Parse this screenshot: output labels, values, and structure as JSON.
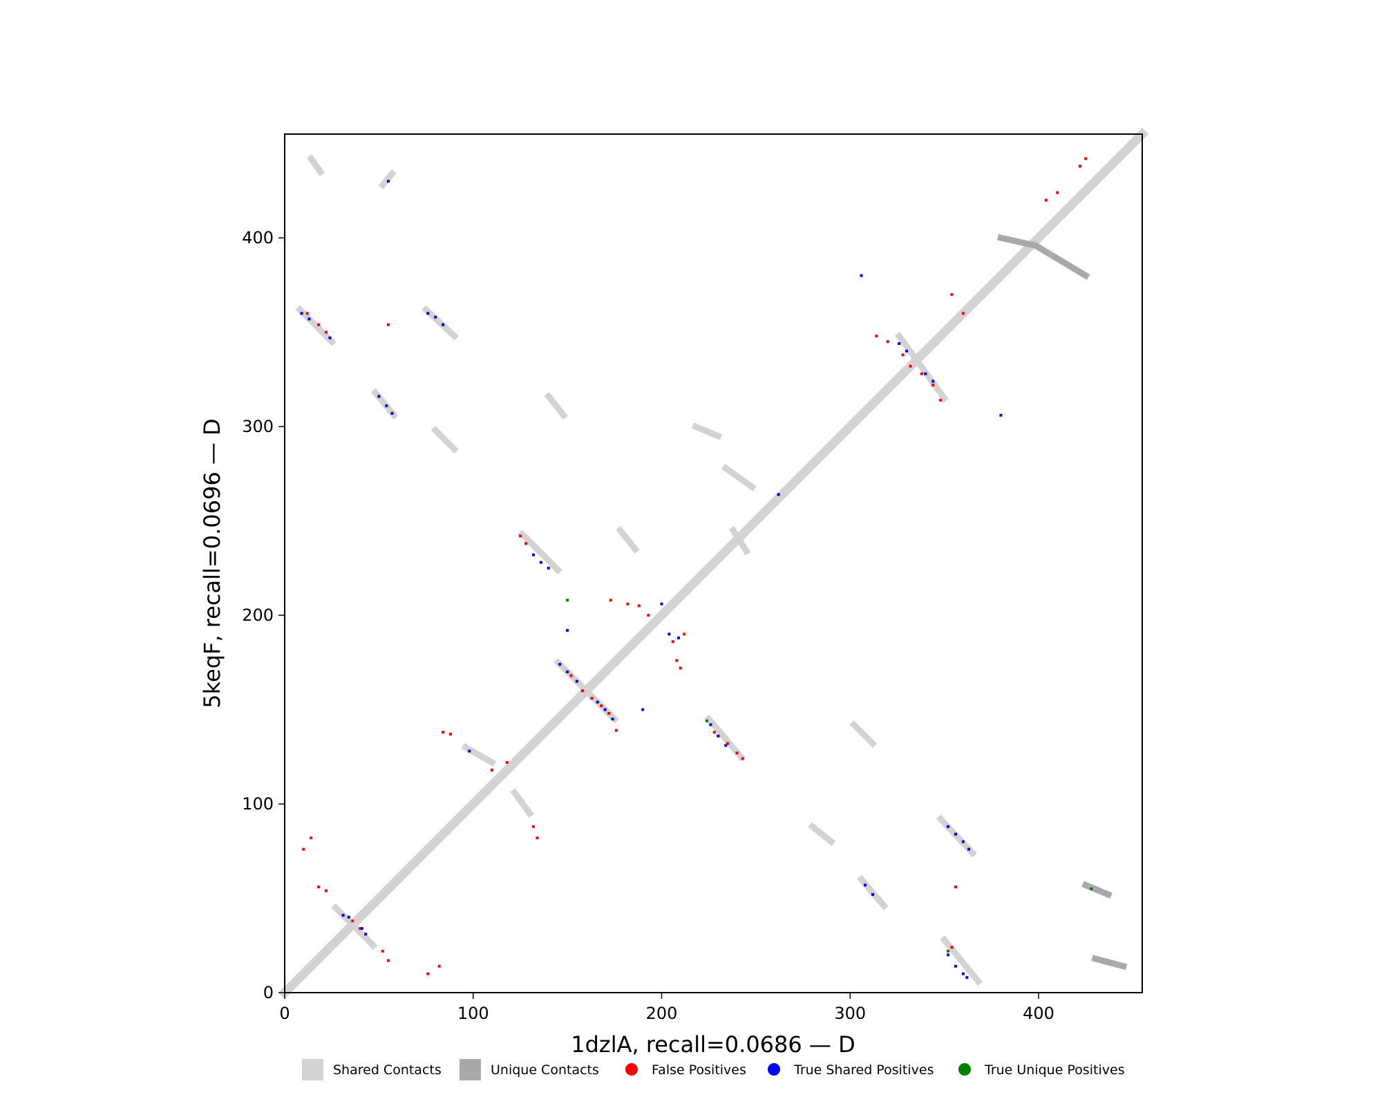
{
  "chart_data": {
    "type": "scatter",
    "title": "",
    "xlabel": "1dzlA, recall=0.0686 — D",
    "ylabel": "5keqF, recall=0.0696 — D",
    "xlim": [
      0,
      455
    ],
    "ylim": [
      0,
      455
    ],
    "x_ticks": [
      "0",
      "100",
      "200",
      "300",
      "400"
    ],
    "y_ticks": [
      "0",
      "100",
      "200",
      "300",
      "400"
    ],
    "grid": false,
    "legend_position": "bottom",
    "colors": {
      "shared_contacts": "#d3d3d3",
      "unique_contacts": "#a9a9a9",
      "false_positives": "#ff0000",
      "true_shared_positives": "#0000ff",
      "true_unique_positives": "#008000"
    },
    "legend": [
      {
        "label": "Shared Contacts",
        "marker": "square",
        "color": "#d3d3d3"
      },
      {
        "label": "Unique Contacts",
        "marker": "square",
        "color": "#a9a9a9"
      },
      {
        "label": "False Positives",
        "marker": "circle",
        "color": "#ff0000"
      },
      {
        "label": "True Shared Positives",
        "marker": "circle",
        "color": "#0000ff"
      },
      {
        "label": "True Unique Positives",
        "marker": "circle",
        "color": "#008000"
      }
    ],
    "diagonal_band": {
      "from": 0,
      "to": 455,
      "color": "#d3d3d3"
    },
    "contact_segments": [
      {
        "series": "shared",
        "x": [
          8,
          25
        ],
        "y": [
          362,
          345
        ]
      },
      {
        "series": "shared",
        "x": [
          75,
          90
        ],
        "y": [
          362,
          348
        ]
      },
      {
        "series": "shared",
        "x": [
          48,
          58
        ],
        "y": [
          318,
          306
        ]
      },
      {
        "series": "shared",
        "x": [
          140,
          148
        ],
        "y": [
          316,
          306
        ]
      },
      {
        "series": "shared",
        "x": [
          126,
          145
        ],
        "y": [
          243,
          224
        ]
      },
      {
        "series": "shared",
        "x": [
          145,
          175
        ],
        "y": [
          175,
          145
        ]
      },
      {
        "series": "shared",
        "x": [
          225,
          242
        ],
        "y": [
          145,
          125
        ]
      },
      {
        "series": "shared",
        "x": [
          326,
          350
        ],
        "y": [
          348,
          315
        ]
      },
      {
        "series": "shared",
        "x": [
          348,
          365
        ],
        "y": [
          92,
          74
        ]
      },
      {
        "series": "shared",
        "x": [
          350,
          368
        ],
        "y": [
          28,
          6
        ]
      },
      {
        "series": "shared",
        "x": [
          306,
          318
        ],
        "y": [
          60,
          46
        ]
      },
      {
        "series": "shared",
        "x": [
          27,
          47
        ],
        "y": [
          45,
          25
        ]
      },
      {
        "series": "shared",
        "x": [
          234,
          248
        ],
        "y": [
          278,
          268
        ]
      },
      {
        "series": "shared",
        "x": [
          178,
          186
        ],
        "y": [
          245,
          235
        ]
      },
      {
        "series": "shared",
        "x": [
          96,
          110
        ],
        "y": [
          130,
          122
        ]
      },
      {
        "series": "shared",
        "x": [
          122,
          130
        ],
        "y": [
          106,
          95
        ]
      },
      {
        "series": "shared",
        "x": [
          302,
          312
        ],
        "y": [
          142,
          132
        ]
      },
      {
        "series": "shared",
        "x": [
          280,
          290
        ],
        "y": [
          88,
          80
        ]
      },
      {
        "series": "shared",
        "x": [
          238,
          245
        ],
        "y": [
          245,
          234
        ]
      },
      {
        "series": "shared",
        "x": [
          80,
          90
        ],
        "y": [
          298,
          288
        ]
      },
      {
        "series": "shared",
        "x": [
          218,
          230
        ],
        "y": [
          300,
          295
        ]
      },
      {
        "series": "shared",
        "x": [
          52,
          57
        ],
        "y": [
          428,
          434
        ]
      },
      {
        "series": "shared",
        "x": [
          14,
          19
        ],
        "y": [
          442,
          435
        ]
      },
      {
        "series": "unique",
        "x": [
          400,
          425
        ],
        "y": [
          395,
          380
        ]
      },
      {
        "series": "unique",
        "x": [
          380,
          398
        ],
        "y": [
          400,
          396
        ]
      },
      {
        "series": "unique",
        "x": [
          425,
          437
        ],
        "y": [
          57,
          52
        ]
      },
      {
        "series": "unique",
        "x": [
          430,
          445
        ],
        "y": [
          18,
          14
        ]
      }
    ],
    "false_positive_points": [
      {
        "x": 12,
        "y": 360
      },
      {
        "x": 18,
        "y": 354
      },
      {
        "x": 22,
        "y": 350
      },
      {
        "x": 55,
        "y": 354
      },
      {
        "x": 125,
        "y": 242
      },
      {
        "x": 128,
        "y": 238
      },
      {
        "x": 152,
        "y": 168
      },
      {
        "x": 158,
        "y": 160
      },
      {
        "x": 163,
        "y": 156
      },
      {
        "x": 168,
        "y": 152
      },
      {
        "x": 172,
        "y": 148
      },
      {
        "x": 176,
        "y": 139
      },
      {
        "x": 173,
        "y": 208
      },
      {
        "x": 182,
        "y": 206
      },
      {
        "x": 188,
        "y": 205
      },
      {
        "x": 193,
        "y": 200
      },
      {
        "x": 206,
        "y": 186
      },
      {
        "x": 208,
        "y": 176
      },
      {
        "x": 210,
        "y": 172
      },
      {
        "x": 212,
        "y": 190
      },
      {
        "x": 235,
        "y": 132
      },
      {
        "x": 240,
        "y": 127
      },
      {
        "x": 243,
        "y": 124
      },
      {
        "x": 228,
        "y": 138
      },
      {
        "x": 328,
        "y": 338
      },
      {
        "x": 332,
        "y": 332
      },
      {
        "x": 338,
        "y": 328
      },
      {
        "x": 344,
        "y": 322
      },
      {
        "x": 348,
        "y": 314
      },
      {
        "x": 314,
        "y": 348
      },
      {
        "x": 320,
        "y": 345
      },
      {
        "x": 354,
        "y": 370
      },
      {
        "x": 360,
        "y": 360
      },
      {
        "x": 84,
        "y": 138
      },
      {
        "x": 88,
        "y": 137
      },
      {
        "x": 110,
        "y": 118
      },
      {
        "x": 118,
        "y": 122
      },
      {
        "x": 132,
        "y": 88
      },
      {
        "x": 134,
        "y": 82
      },
      {
        "x": 10,
        "y": 76
      },
      {
        "x": 14,
        "y": 82
      },
      {
        "x": 18,
        "y": 56
      },
      {
        "x": 22,
        "y": 54
      },
      {
        "x": 52,
        "y": 22
      },
      {
        "x": 55,
        "y": 17
      },
      {
        "x": 76,
        "y": 10
      },
      {
        "x": 82,
        "y": 14
      },
      {
        "x": 354,
        "y": 24
      },
      {
        "x": 356,
        "y": 56
      },
      {
        "x": 404,
        "y": 420
      },
      {
        "x": 410,
        "y": 424
      },
      {
        "x": 422,
        "y": 438
      },
      {
        "x": 425,
        "y": 442
      },
      {
        "x": 36,
        "y": 38
      },
      {
        "x": 40,
        "y": 34
      }
    ],
    "true_shared_positive_points": [
      {
        "x": 9,
        "y": 360
      },
      {
        "x": 13,
        "y": 357
      },
      {
        "x": 24,
        "y": 347
      },
      {
        "x": 76,
        "y": 360
      },
      {
        "x": 80,
        "y": 358
      },
      {
        "x": 84,
        "y": 354
      },
      {
        "x": 50,
        "y": 316
      },
      {
        "x": 54,
        "y": 311
      },
      {
        "x": 57,
        "y": 307
      },
      {
        "x": 55,
        "y": 430
      },
      {
        "x": 132,
        "y": 232
      },
      {
        "x": 136,
        "y": 228
      },
      {
        "x": 140,
        "y": 225
      },
      {
        "x": 146,
        "y": 174
      },
      {
        "x": 150,
        "y": 170
      },
      {
        "x": 155,
        "y": 165
      },
      {
        "x": 166,
        "y": 154
      },
      {
        "x": 170,
        "y": 150
      },
      {
        "x": 174,
        "y": 145
      },
      {
        "x": 150,
        "y": 192
      },
      {
        "x": 190,
        "y": 150
      },
      {
        "x": 226,
        "y": 142
      },
      {
        "x": 230,
        "y": 136
      },
      {
        "x": 234,
        "y": 131
      },
      {
        "x": 326,
        "y": 344
      },
      {
        "x": 330,
        "y": 340
      },
      {
        "x": 340,
        "y": 328
      },
      {
        "x": 344,
        "y": 324
      },
      {
        "x": 352,
        "y": 88
      },
      {
        "x": 356,
        "y": 84
      },
      {
        "x": 360,
        "y": 80
      },
      {
        "x": 363,
        "y": 76
      },
      {
        "x": 308,
        "y": 57
      },
      {
        "x": 312,
        "y": 52
      },
      {
        "x": 352,
        "y": 20
      },
      {
        "x": 356,
        "y": 14
      },
      {
        "x": 360,
        "y": 10
      },
      {
        "x": 362,
        "y": 8
      },
      {
        "x": 31,
        "y": 41
      },
      {
        "x": 34,
        "y": 40
      },
      {
        "x": 41,
        "y": 34
      },
      {
        "x": 43,
        "y": 31
      },
      {
        "x": 306,
        "y": 380
      },
      {
        "x": 380,
        "y": 306
      },
      {
        "x": 262,
        "y": 264
      },
      {
        "x": 98,
        "y": 128
      },
      {
        "x": 200,
        "y": 206
      },
      {
        "x": 204,
        "y": 190
      },
      {
        "x": 209,
        "y": 188
      }
    ],
    "true_unique_positive_points": [
      {
        "x": 150,
        "y": 208
      },
      {
        "x": 428,
        "y": 55
      },
      {
        "x": 352,
        "y": 22
      },
      {
        "x": 224,
        "y": 144
      }
    ]
  }
}
